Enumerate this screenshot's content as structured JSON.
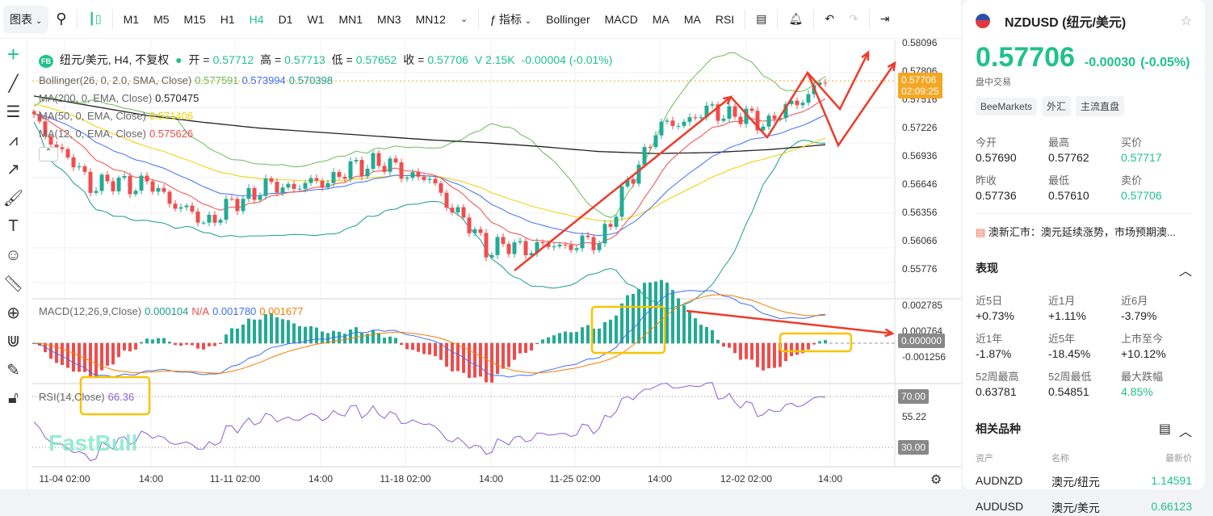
{
  "toolbar": {
    "chart_menu": "图表",
    "timeframes": [
      "M1",
      "M5",
      "M15",
      "H1",
      "H4",
      "D1",
      "W1",
      "MN1",
      "MN3",
      "MN12"
    ],
    "active_timeframe": "H4",
    "indicators_label": "指标",
    "indicator_shortcuts": [
      "Bollinger",
      "MACD",
      "MA",
      "MA",
      "RSI"
    ]
  },
  "legend": {
    "symbol_badge": "FB",
    "title": "纽元/美元, H4, 不复权",
    "open_label": "开 =",
    "open": "0.57712",
    "high_label": "高 =",
    "high": "0.57713",
    "low_label": "低 =",
    "low": "0.57652",
    "close_label": "收 =",
    "close": "0.57706",
    "volume": "V 2.15K",
    "change": "-0.00004 (-0.01%)",
    "bollinger": {
      "label": "Bollinger(26, 0, 2.0, SMA, Close)",
      "upper": "0.577591",
      "mid": "0.573994",
      "lower": "0.570398"
    },
    "ma200": {
      "label": "MA(200, 0, EMA, Close)",
      "value": "0.570475"
    },
    "ma50": {
      "label": "MA(50, 0, EMA, Close)",
      "value": "0.571406"
    },
    "ma12": {
      "label": "MA(12, 0, EMA, Close)",
      "value": "0.575626"
    },
    "macd": {
      "label": "MACD(12,26,9,Close)",
      "hist": "0.000104",
      "na": "N/A",
      "macd": "0.001780",
      "signal": "0.001677"
    },
    "rsi": {
      "label": "RSI(14,Close)",
      "value": "66.36"
    }
  },
  "price_axis": [
    "0.58096",
    "0.57806",
    "0.57516",
    "0.57226",
    "0.56936",
    "0.56646",
    "0.56356",
    "0.56066",
    "0.55776"
  ],
  "last_price_tag": {
    "price": "0.57706",
    "countdown": "02:09:25"
  },
  "macd_axis": [
    "0.002785",
    "0.000764",
    "-0.001256"
  ],
  "macd_zero_tag": "0.000000",
  "rsi_axis": {
    "upper_tag": "70.00",
    "mid": "55.22",
    "lower_tag": "30.00"
  },
  "time_axis": [
    "11-04 02:00",
    "14:00",
    "11-11 02:00",
    "14:00",
    "11-18 02:00",
    "14:00",
    "11-25 02:00",
    "14:00",
    "12-02 02:00",
    "14:00"
  ],
  "watermark": "FastBull",
  "colors": {
    "up": "#22ab94",
    "down": "#ef4d4d",
    "accent": "#1fc28a",
    "annotation_arrow": "#ee3b2b",
    "annotation_box": "#f9c400",
    "last_price": "#f5a623"
  },
  "chart_data": {
    "type": "candlestick",
    "note_sampling": "close every 10 bars",
    "closes": [
      0.573,
      0.5665,
      0.5665,
      0.5625,
      0.566,
      0.5665,
      0.5688,
      0.5668,
      0.56,
      0.56,
      0.5605,
      0.572,
      0.574,
      0.5728,
      0.5771
    ],
    "ma200_closes": [
      0.5755,
      0.5745,
      0.5735,
      0.5728,
      0.5722,
      0.5718,
      0.5714,
      0.571,
      0.5707,
      0.5703,
      0.5698,
      0.5696,
      0.5697,
      0.57,
      0.5705
    ]
  },
  "panel": {
    "symbol": "NZDUSD (纽元/美元)",
    "price": "0.57706",
    "change": "-0.00030",
    "change_pct": "(-0.05%)",
    "status": "盘中交易",
    "chips": [
      "BeeMarkets",
      "外汇",
      "主流直盘"
    ],
    "quote": [
      {
        "label": "今开",
        "value": "0.57690"
      },
      {
        "label": "最高",
        "value": "0.57762"
      },
      {
        "label": "买价",
        "value": "0.57717",
        "green": true
      },
      {
        "label": "昨收",
        "value": "0.57736"
      },
      {
        "label": "最低",
        "value": "0.57610"
      },
      {
        "label": "卖价",
        "value": "0.57706",
        "green": true
      }
    ],
    "news": "澳新汇市：澳元延续涨势，市场预期澳...",
    "performance_title": "表现",
    "performance": [
      {
        "label": "近5日",
        "value": "+0.73%"
      },
      {
        "label": "近1月",
        "value": "+1.11%"
      },
      {
        "label": "近6月",
        "value": "-3.79%"
      },
      {
        "label": "近1年",
        "value": "-1.87%"
      },
      {
        "label": "近5年",
        "value": "-18.45%"
      },
      {
        "label": "上市至今",
        "value": "+10.12%"
      },
      {
        "label": "52周最高",
        "value": "0.63781"
      },
      {
        "label": "52周最低",
        "value": "0.54851"
      },
      {
        "label": "最大跌幅",
        "value": "4.85%",
        "green": true
      }
    ],
    "related_title": "相关品种",
    "related_headers": [
      "资产",
      "名称",
      "最新价"
    ],
    "related": [
      {
        "asset": "AUDNZD",
        "name": "澳元/纽元",
        "price": "1.14591"
      },
      {
        "asset": "AUDUSD",
        "name": "澳元/美元",
        "price": "0.66123"
      }
    ]
  }
}
